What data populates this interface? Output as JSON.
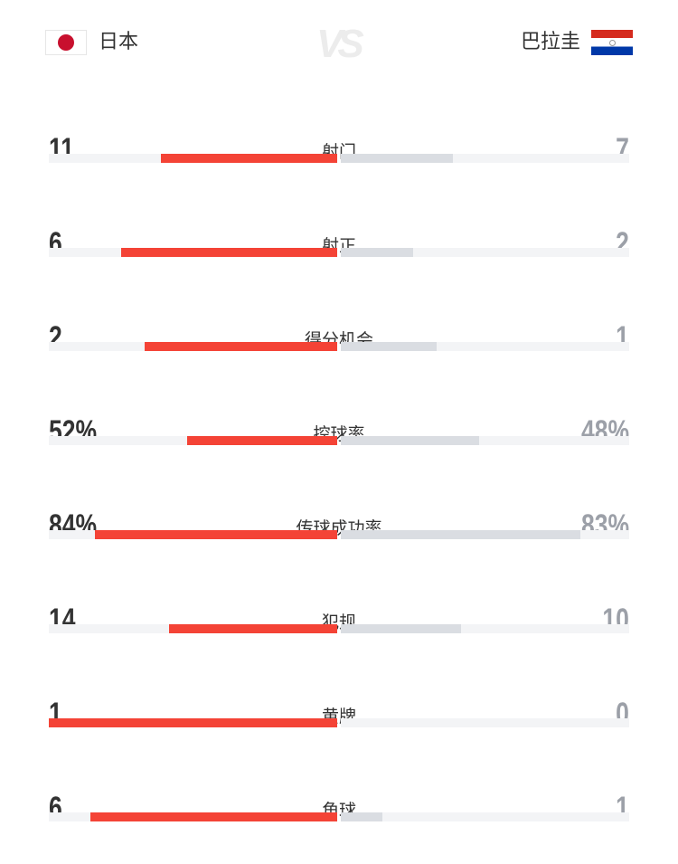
{
  "header": {
    "home_team": "日本",
    "away_team": "巴拉圭",
    "vs_label": "VS",
    "home_flag": "japan-flag",
    "away_flag": "paraguay-flag"
  },
  "colors": {
    "home_bar": "#f44336",
    "away_bar": "#dadde2",
    "track": "#f3f4f6"
  },
  "stats": [
    {
      "label": "射门",
      "home": "11",
      "away": "7",
      "home_fraction": 0.611,
      "away_fraction": 0.389
    },
    {
      "label": "射正",
      "home": "6",
      "away": "2",
      "home_fraction": 0.75,
      "away_fraction": 0.25
    },
    {
      "label": "得分机会",
      "home": "2",
      "away": "1",
      "home_fraction": 0.667,
      "away_fraction": 0.333
    },
    {
      "label": "控球率",
      "home": "52%",
      "away": "48%",
      "home_fraction": 0.52,
      "away_fraction": 0.48
    },
    {
      "label": "传球成功率",
      "home": "84%",
      "away": "83%",
      "home_fraction": 0.84,
      "away_fraction": 0.83
    },
    {
      "label": "犯规",
      "home": "14",
      "away": "10",
      "home_fraction": 0.583,
      "away_fraction": 0.417
    },
    {
      "label": "黄牌",
      "home": "1",
      "away": "0",
      "home_fraction": 1.0,
      "away_fraction": 0.0
    },
    {
      "label": "角球",
      "home": "6",
      "away": "1",
      "home_fraction": 0.857,
      "away_fraction": 0.143
    }
  ]
}
